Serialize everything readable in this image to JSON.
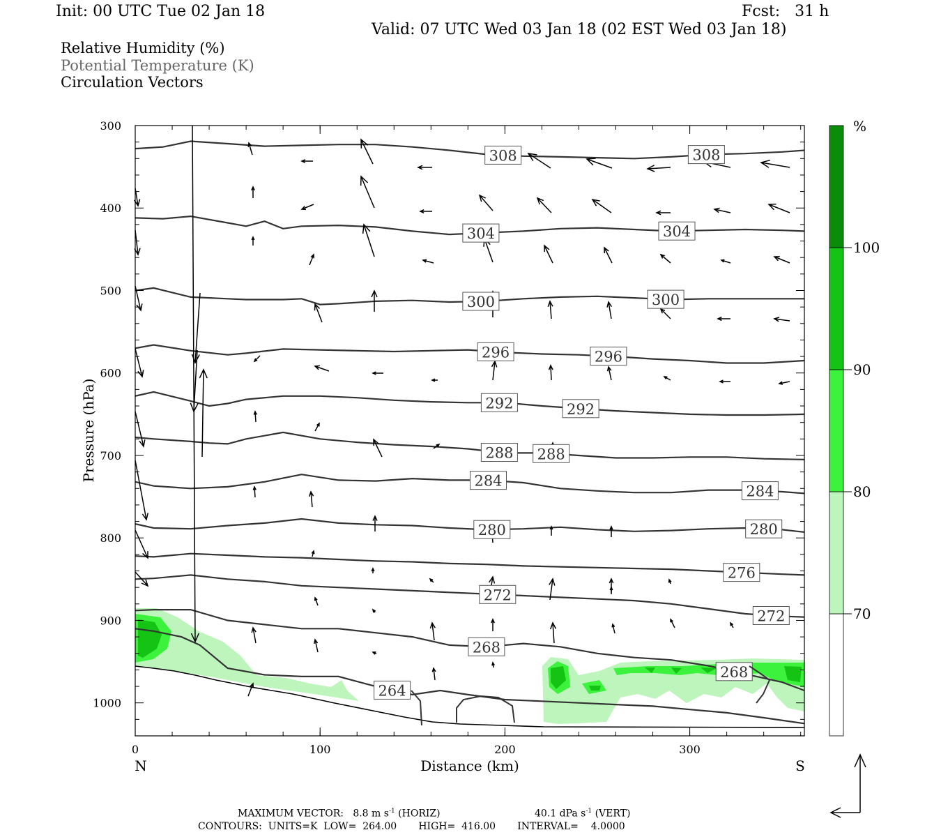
{
  "header": {
    "init": "Init: 00 UTC Tue 02 Jan 18",
    "fcst": "Fcst:   31 h",
    "valid": "Valid: 07 UTC Wed 03 Jan 18 (02 EST Wed 03 Jan 18)"
  },
  "legend": {
    "rh": "Relative Humidity (%)",
    "theta": "Potential Temperature (K)",
    "vectors": "Circulation Vectors"
  },
  "footer": {
    "maxvec": "MAXIMUM VECTOR:   8.8 m s",
    "maxvec_sup": "-1",
    "maxvec_h": " (HORIZ)",
    "maxvec_vert": "40.1 dPa s",
    "maxvec_vert_sup": "-1",
    "maxvec_v": " (VERT)",
    "contours": "CONTOURS:  UNITS=K  LOW=  264.00       HIGH=  416.00       INTERVAL=    4.0000"
  },
  "colors": {
    "rh70": "#bdf5bd",
    "rh80": "#3cf23c",
    "rh90": "#14c314",
    "rh100": "#0a8c0a",
    "contour": "#333333"
  },
  "chart_data": {
    "type": "cross-section",
    "xlabel": "Distance (km)",
    "ylabel": "Pressure (hPa)",
    "xlim": [
      0,
      362
    ],
    "ylim": [
      1040,
      300
    ],
    "x_ticks": [
      0,
      100,
      200,
      300
    ],
    "y_ticks": [
      300,
      400,
      500,
      600,
      700,
      800,
      900,
      1000
    ],
    "end_labels": {
      "left": "N",
      "right": "S"
    },
    "colorbar": {
      "unit": "%",
      "levels": [
        70,
        80,
        90,
        100
      ],
      "colors": [
        "#ffffff",
        "#bdf5bd",
        "#3cf23c",
        "#14c314",
        "#0a8c0a"
      ]
    },
    "isentropes": [
      {
        "theta": 308,
        "x": [
          0,
          15,
          30,
          50,
          70,
          90,
          110,
          130,
          150,
          170,
          190,
          210,
          230,
          250,
          270,
          290,
          310,
          330,
          350,
          362
        ],
        "p": [
          328,
          326,
          319,
          322,
          325,
          324,
          323,
          323,
          326,
          330,
          335,
          337,
          338,
          339,
          340,
          338,
          335,
          334,
          332,
          330
        ],
        "labels_x": [
          199,
          309
        ]
      },
      {
        "theta": 304,
        "x": [
          0,
          15,
          30,
          50,
          60,
          70,
          80,
          90,
          110,
          130,
          150,
          170,
          190,
          210,
          230,
          250,
          270,
          290,
          310,
          330,
          350,
          362
        ],
        "p": [
          412,
          413,
          410,
          418,
          422,
          416,
          425,
          422,
          421,
          423,
          428,
          432,
          430,
          428,
          425,
          424,
          426,
          428,
          427,
          426,
          427,
          428
        ],
        "labels_x": [
          187,
          293
        ]
      },
      {
        "theta": 300,
        "x": [
          0,
          10,
          30,
          50,
          60,
          80,
          90,
          100,
          110,
          130,
          150,
          170,
          190,
          210,
          230,
          250,
          270,
          290,
          310,
          330,
          350,
          362
        ],
        "p": [
          500,
          497,
          508,
          510,
          511,
          511,
          510,
          517,
          516,
          513,
          512,
          514,
          513,
          510,
          508,
          507,
          509,
          511,
          510,
          510,
          510,
          510
        ],
        "labels_x": [
          187,
          287
        ]
      },
      {
        "theta": 296,
        "x": [
          0,
          10,
          30,
          50,
          60,
          80,
          100,
          120,
          140,
          160,
          180,
          200,
          220,
          240,
          260,
          280,
          300,
          320,
          340,
          362
        ],
        "p": [
          570,
          566,
          573,
          578,
          576,
          571,
          572,
          573,
          574,
          573,
          572,
          575,
          577,
          578,
          580,
          583,
          585,
          588,
          588,
          585
        ],
        "labels_x": [
          195,
          256
        ]
      },
      {
        "theta": 292,
        "x": [
          0,
          10,
          30,
          40,
          50,
          60,
          80,
          100,
          120,
          140,
          160,
          180,
          200,
          220,
          240,
          260,
          280,
          300,
          320,
          340,
          362
        ],
        "p": [
          628,
          623,
          634,
          640,
          637,
          632,
          628,
          628,
          630,
          633,
          635,
          636,
          636,
          640,
          643,
          646,
          648,
          650,
          651,
          651,
          650
        ],
        "labels_x": [
          197,
          241
        ]
      },
      {
        "theta": 288,
        "x": [
          0,
          10,
          30,
          40,
          50,
          60,
          80,
          100,
          120,
          140,
          160,
          180,
          200,
          220,
          240,
          260,
          280,
          300,
          320,
          340,
          362
        ],
        "p": [
          678,
          680,
          683,
          685,
          686,
          680,
          672,
          680,
          684,
          687,
          689,
          692,
          697,
          697,
          700,
          703,
          703,
          702,
          702,
          704,
          705
        ],
        "labels_x": [
          197,
          225
        ]
      },
      {
        "theta": 284,
        "x": [
          0,
          10,
          30,
          50,
          70,
          90,
          110,
          130,
          150,
          170,
          190,
          210,
          230,
          250,
          270,
          290,
          310,
          330,
          350,
          362
        ],
        "p": [
          732,
          737,
          740,
          738,
          732,
          723,
          730,
          731,
          728,
          730,
          730,
          733,
          740,
          743,
          745,
          745,
          742,
          742,
          744,
          746
        ],
        "labels_x": [
          191,
          338
        ]
      },
      {
        "theta": 280,
        "x": [
          0,
          10,
          30,
          50,
          70,
          90,
          110,
          130,
          150,
          170,
          190,
          210,
          230,
          250,
          270,
          290,
          310,
          330,
          350,
          362
        ],
        "p": [
          783,
          788,
          789,
          785,
          782,
          777,
          782,
          784,
          785,
          788,
          790,
          789,
          787,
          790,
          792,
          791,
          789,
          788,
          790,
          793
        ],
        "labels_x": [
          193,
          340
        ]
      },
      {
        "theta": 276,
        "x": [
          0,
          10,
          30,
          50,
          70,
          90,
          110,
          130,
          150,
          170,
          190,
          210,
          230,
          250,
          270,
          290,
          310,
          330,
          350,
          362
        ],
        "p": [
          822,
          823,
          819,
          821,
          823,
          824,
          826,
          828,
          829,
          831,
          832,
          834,
          835,
          836,
          837,
          838,
          840,
          842,
          844,
          845
        ],
        "labels_x": [
          328
        ]
      },
      {
        "theta": 272,
        "x": [
          0,
          10,
          30,
          50,
          70,
          90,
          110,
          130,
          150,
          170,
          190,
          210,
          230,
          250,
          270,
          290,
          310,
          330,
          350,
          362
        ],
        "p": [
          850,
          849,
          845,
          850,
          853,
          858,
          860,
          862,
          864,
          866,
          868,
          870,
          872,
          874,
          876,
          880,
          886,
          892,
          895,
          896
        ],
        "labels_x": [
          196,
          344
        ]
      },
      {
        "theta": 268,
        "x": [
          0,
          10,
          30,
          50,
          70,
          90,
          110,
          130,
          150,
          170,
          190,
          210,
          230,
          250,
          270,
          290,
          310,
          330,
          350,
          362
        ],
        "p": [
          888,
          887,
          887,
          900,
          905,
          910,
          910,
          915,
          920,
          930,
          932,
          928,
          932,
          940,
          945,
          948,
          955,
          965,
          975,
          985
        ],
        "labels_x": [
          190,
          324
        ]
      },
      {
        "theta": 264,
        "x": [
          0,
          10,
          25,
          35,
          50,
          70,
          90,
          110,
          130,
          150,
          165,
          180,
          200,
          220,
          240,
          260,
          280,
          300,
          320,
          340,
          362
        ],
        "p": [
          910,
          913,
          920,
          930,
          958,
          966,
          968,
          968,
          980,
          990,
          985,
          990,
          996,
          998,
          1000,
          1002,
          1004,
          1008,
          1012,
          1018,
          1025
        ],
        "labels_x": [
          139
        ]
      }
    ],
    "surface_pressure_hPa_at_x": {
      "x": [
        0,
        30,
        60,
        90,
        120,
        150,
        170,
        190,
        200,
        220,
        362
      ],
      "p": [
        955,
        962,
        975,
        990,
        1005,
        1018,
        1030,
        1032,
        1030,
        1032,
        1032
      ]
    },
    "max_vector": {
      "horiz_m_s": 8.8,
      "vert_dPa_s": 40.1
    }
  }
}
